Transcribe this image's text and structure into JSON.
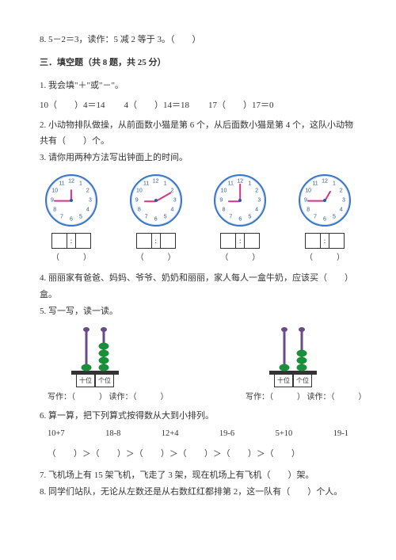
{
  "q8": "8. 5－2＝3，读作：5 减 2 等于 3。（　　）",
  "section": "三．填空题（共 8 题，共 25 分）",
  "q1": {
    "stem": "1. 我会填\"＋\"或\"－\"。",
    "items": [
      "10（　　）4＝14",
      "4（　　）14＝18",
      "17（　　）17＝0"
    ]
  },
  "q2": "2. 小动物排队做操，从前面数小猫是第 6 个，从后面数小猫是第 4 个，这队小动物共有（　　）个。",
  "q3": "3. 请你用两种方法写出钟面上的时间。",
  "clocks": [
    {
      "hourAngle": -90,
      "minAngle": 180
    },
    {
      "hourAngle": 180,
      "minAngle": -30
    },
    {
      "hourAngle": 180,
      "minAngle": -90
    },
    {
      "hourAngle": -60,
      "minAngle": 180
    }
  ],
  "clock_numbers": [
    "12",
    "1",
    "2",
    "3",
    "4",
    "5",
    "6",
    "7",
    "8",
    "9",
    "10",
    "11"
  ],
  "paren_blank": "（　　　）",
  "q4": "4. 丽丽家有爸爸、妈妈、爷爷、奶奶和丽丽，家人每人一盒牛奶，应该买（　　）盒。",
  "q5": "5. 写一写，读一读。",
  "abacus_labels": {
    "tens": "十位",
    "ones": "个位"
  },
  "abacus1": {
    "tens": 1,
    "ones": 4,
    "caption_write": "写作：（　　　）",
    "caption_read": "读作：（　　　）"
  },
  "abacus2": {
    "tens": 1,
    "ones": 3,
    "caption_write": "写作：（　　　）",
    "caption_read": "读作：（　　　）"
  },
  "bead_color": "#1a8f3a",
  "rod_color": "#6b4a8a",
  "q6": {
    "stem": "6. 算一算，把下列算式按得数从大到小排列。",
    "exprs": [
      "10+7",
      "18-8",
      "12+4",
      "19-6",
      "5+10",
      "19-1"
    ],
    "paren_chain": "（　　）＞（　　）＞（　　）＞（　　）＞（　　）＞（　　）"
  },
  "q7": "7. 飞机场上有 15 架飞机，飞走了 3 架，现在机场上有飞机（　　）架。",
  "q8b": "8. 同学们站队，无论从左数还是从右数红红都排第 2，这一队有（　　）个人。"
}
